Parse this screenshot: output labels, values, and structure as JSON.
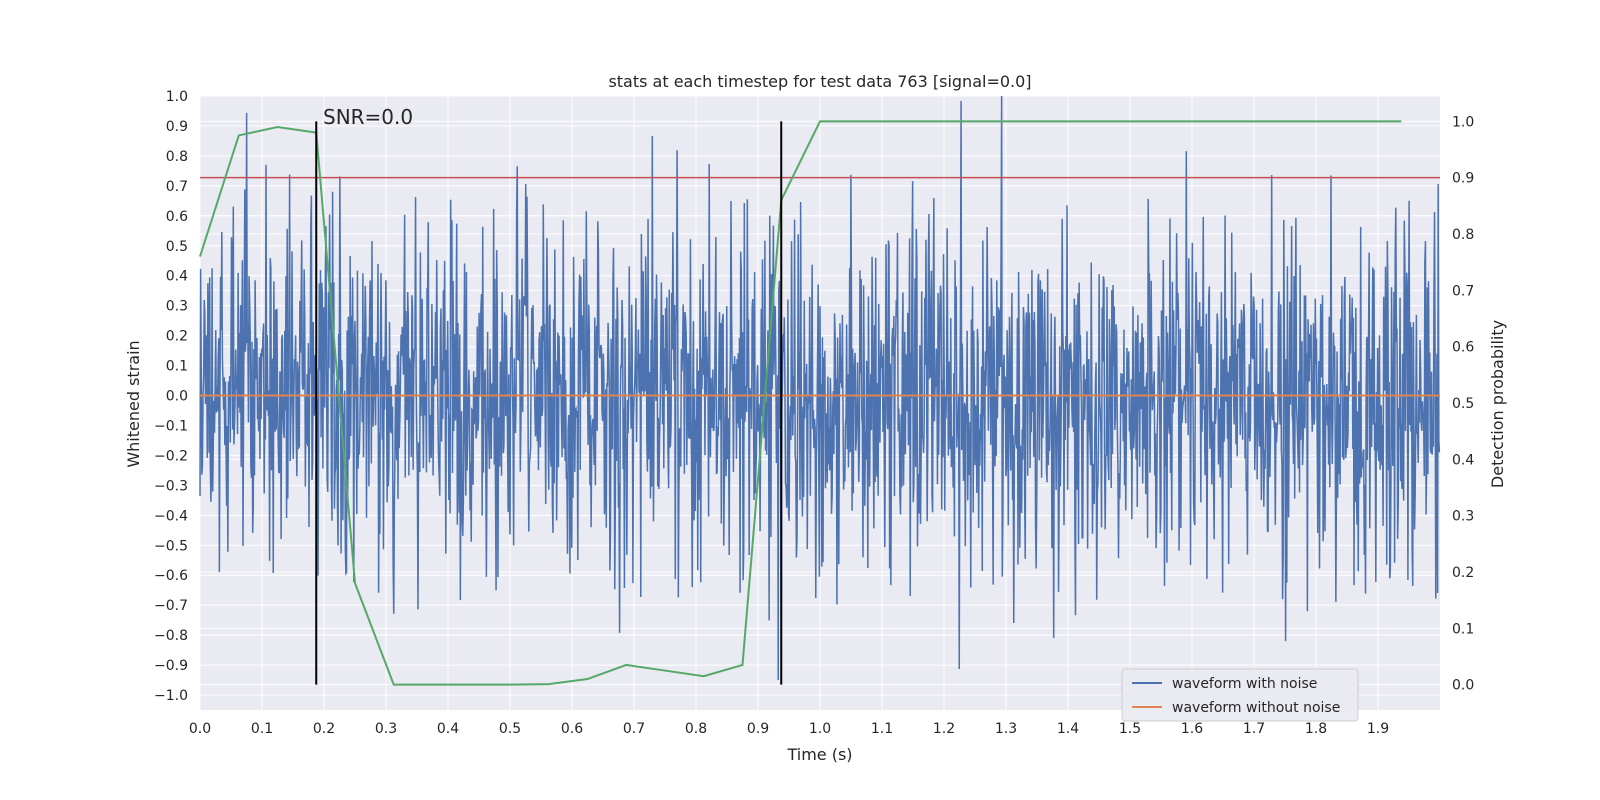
{
  "chart_data": {
    "type": "line",
    "title": "stats at each timestep for test data 763 [signal=0.0]",
    "xlabel": "Time (s)",
    "ylabel": "Whitened strain",
    "y2label": "Detection probability",
    "xlim": [
      0.0,
      2.0
    ],
    "ylim": [
      -1.05,
      1.0
    ],
    "y2lim": [
      -0.045,
      1.045
    ],
    "xticks": [
      "0.0",
      "0.1",
      "0.2",
      "0.3",
      "0.4",
      "0.5",
      "0.6",
      "0.7",
      "0.8",
      "0.9",
      "1.0",
      "1.1",
      "1.2",
      "1.3",
      "1.4",
      "1.5",
      "1.6",
      "1.7",
      "1.8",
      "1.9"
    ],
    "yticks": [
      "1.0",
      "0.9",
      "0.8",
      "0.7",
      "0.6",
      "0.5",
      "0.4",
      "0.3",
      "0.2",
      "0.1",
      "0.0",
      "−0.1",
      "−0.2",
      "−0.3",
      "−0.4",
      "−0.5",
      "−0.6",
      "−0.7",
      "−0.8",
      "−0.9",
      "−1.0"
    ],
    "y2ticks": [
      "0.0",
      "0.1",
      "0.2",
      "0.3",
      "0.4",
      "0.5",
      "0.6",
      "0.7",
      "0.8",
      "0.9",
      "1.0"
    ],
    "annotation": "SNR=0.0",
    "threshold": 0.9,
    "vlines": [
      0.1875,
      0.9375
    ],
    "legend": {
      "placement": "lower-right",
      "entries": [
        "waveform with noise",
        "waveform without noise"
      ]
    },
    "colors": {
      "noise": "#4c72b0",
      "clean": "#dd8452",
      "prob": "#55a868",
      "threshold": "#c44e52",
      "vline": "#000000"
    },
    "series": [
      {
        "name": "waveform with noise",
        "axis": "left",
        "generator": "random-noise",
        "n": 2048,
        "sigma": 0.3,
        "seed": 763
      },
      {
        "name": "waveform without noise",
        "axis": "left",
        "x": [
          0.0,
          2.0
        ],
        "values": [
          0.0,
          0.0
        ]
      },
      {
        "name": "detection probability",
        "axis": "right",
        "x": [
          0.0,
          0.0625,
          0.125,
          0.1875,
          0.25,
          0.3125,
          0.375,
          0.4375,
          0.5,
          0.5625,
          0.625,
          0.6875,
          0.75,
          0.8125,
          0.875,
          0.9375,
          1.0,
          1.0625,
          1.125,
          1.1875,
          1.25,
          1.3125,
          1.375,
          1.4375,
          1.5,
          1.5625,
          1.625,
          1.6875,
          1.75,
          1.8125,
          1.875,
          1.9375
        ],
        "values": [
          0.76,
          0.975,
          0.99,
          0.98,
          0.18,
          0.0,
          0.0,
          0.0,
          0.0,
          0.001,
          0.01,
          0.035,
          0.025,
          0.015,
          0.035,
          0.86,
          1.0,
          1.0,
          1.0,
          1.0,
          1.0,
          1.0,
          1.0,
          1.0,
          1.0,
          1.0,
          1.0,
          1.0,
          1.0,
          1.0,
          1.0,
          1.0
        ]
      }
    ]
  }
}
